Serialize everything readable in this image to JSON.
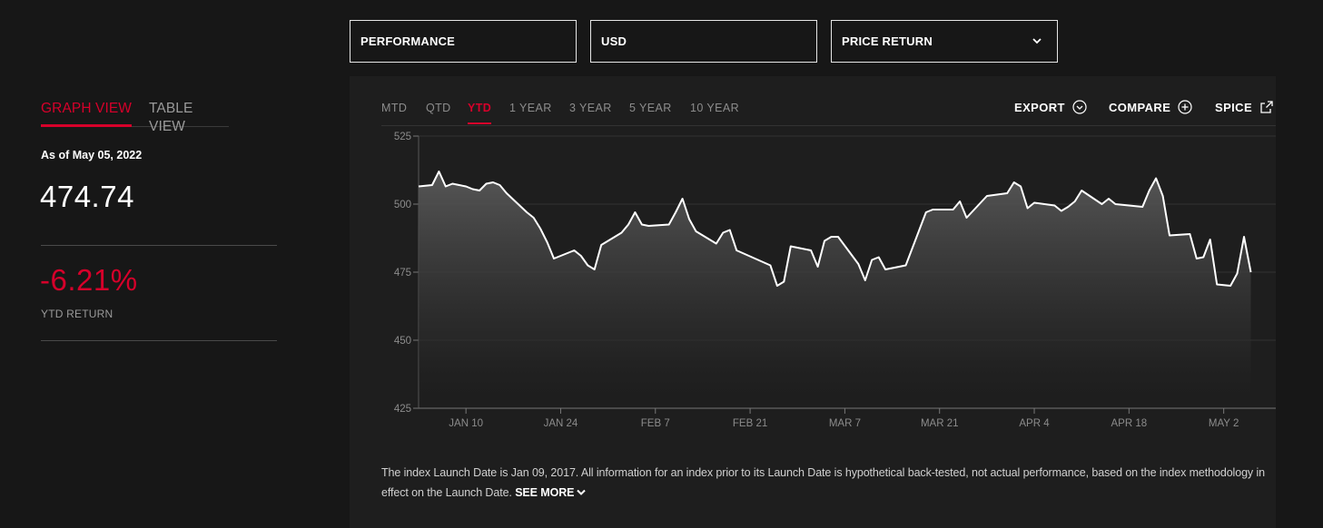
{
  "dropdowns": [
    {
      "value": "PERFORMANCE"
    },
    {
      "value": "USD"
    },
    {
      "value": "PRICE RETURN",
      "has_chevron": true
    }
  ],
  "view_tabs": {
    "graph": "GRAPH VIEW",
    "table": "TABLE VIEW",
    "active": "graph"
  },
  "summary": {
    "as_of": "As of May 05, 2022",
    "value": "474.74",
    "return_value": "-6.21%",
    "return_label": "YTD RETURN"
  },
  "periods": [
    "MTD",
    "QTD",
    "YTD",
    "1 YEAR",
    "3 YEAR",
    "5 YEAR",
    "10 YEAR"
  ],
  "active_period": "YTD",
  "actions": {
    "export": "EXPORT",
    "compare": "COMPARE",
    "spice": "SPICE"
  },
  "colors": {
    "accent": "#d6002a",
    "background": "#171717",
    "panel": "#1e1e1e"
  },
  "icons": {
    "export": "chevron-circle-icon",
    "compare": "plus-circle-icon",
    "spice": "external-link-icon",
    "dropdown": "chevron-down-icon",
    "see_more": "chevron-down-icon"
  },
  "chart_data": {
    "type": "area",
    "ylim": [
      425,
      525
    ],
    "yticks": [
      425,
      450,
      475,
      500,
      525
    ],
    "xlim": [
      "2022-01-03",
      "2022-05-05"
    ],
    "xticks": [
      {
        "date": "2022-01-10",
        "label": "JAN 10"
      },
      {
        "date": "2022-01-24",
        "label": "JAN 24"
      },
      {
        "date": "2022-02-07",
        "label": "FEB 7"
      },
      {
        "date": "2022-02-21",
        "label": "FEB 21"
      },
      {
        "date": "2022-03-07",
        "label": "MAR 7"
      },
      {
        "date": "2022-03-21",
        "label": "MAR 21"
      },
      {
        "date": "2022-04-04",
        "label": "APR 4"
      },
      {
        "date": "2022-04-18",
        "label": "APR 18"
      },
      {
        "date": "2022-05-02",
        "label": "MAY 2"
      }
    ],
    "series": [
      {
        "points": [
          [
            "2022-01-03",
            506.5
          ],
          [
            "2022-01-05",
            507
          ],
          [
            "2022-01-06",
            512
          ],
          [
            "2022-01-07",
            506.5
          ],
          [
            "2022-01-08",
            507.5
          ],
          [
            "2022-01-09",
            507
          ],
          [
            "2022-01-10",
            506.5
          ],
          [
            "2022-01-11",
            505.5
          ],
          [
            "2022-01-12",
            505
          ],
          [
            "2022-01-13",
            507.5
          ],
          [
            "2022-01-14",
            508
          ],
          [
            "2022-01-15",
            507
          ],
          [
            "2022-01-16",
            504
          ],
          [
            "2022-01-19",
            497
          ],
          [
            "2022-01-20",
            495
          ],
          [
            "2022-01-21",
            491
          ],
          [
            "2022-01-22",
            486
          ],
          [
            "2022-01-23",
            480
          ],
          [
            "2022-01-26",
            483
          ],
          [
            "2022-01-27",
            481
          ],
          [
            "2022-01-28",
            477.5
          ],
          [
            "2022-01-29",
            476
          ],
          [
            "2022-01-30",
            485
          ],
          [
            "2022-02-01",
            488
          ],
          [
            "2022-02-02",
            489.5
          ],
          [
            "2022-02-03",
            492.5
          ],
          [
            "2022-02-04",
            497
          ],
          [
            "2022-02-05",
            492.5
          ],
          [
            "2022-02-06",
            492
          ],
          [
            "2022-02-09",
            492.5
          ],
          [
            "2022-02-10",
            497
          ],
          [
            "2022-02-11",
            502
          ],
          [
            "2022-02-12",
            494.5
          ],
          [
            "2022-02-13",
            490
          ],
          [
            "2022-02-16",
            485.5
          ],
          [
            "2022-02-17",
            489.5
          ],
          [
            "2022-02-18",
            490.5
          ],
          [
            "2022-02-19",
            483
          ],
          [
            "2022-02-24",
            477.5
          ],
          [
            "2022-02-25",
            470
          ],
          [
            "2022-02-26",
            471.5
          ],
          [
            "2022-02-27",
            484.5
          ],
          [
            "2022-03-02",
            483
          ],
          [
            "2022-03-03",
            477
          ],
          [
            "2022-03-04",
            486.5
          ],
          [
            "2022-03-05",
            488
          ],
          [
            "2022-03-06",
            488
          ],
          [
            "2022-03-09",
            478
          ],
          [
            "2022-03-10",
            472
          ],
          [
            "2022-03-11",
            479.5
          ],
          [
            "2022-03-12",
            480.5
          ],
          [
            "2022-03-13",
            476
          ],
          [
            "2022-03-16",
            477.5
          ],
          [
            "2022-03-19",
            497
          ],
          [
            "2022-03-20",
            498
          ],
          [
            "2022-03-23",
            498
          ],
          [
            "2022-03-24",
            501
          ],
          [
            "2022-03-25",
            495
          ],
          [
            "2022-03-28",
            503
          ],
          [
            "2022-03-31",
            504
          ],
          [
            "2022-04-01",
            508
          ],
          [
            "2022-04-02",
            506.5
          ],
          [
            "2022-04-03",
            498.5
          ],
          [
            "2022-04-04",
            500.5
          ],
          [
            "2022-04-07",
            499.5
          ],
          [
            "2022-04-08",
            497.5
          ],
          [
            "2022-04-09",
            499
          ],
          [
            "2022-04-10",
            501
          ],
          [
            "2022-04-11",
            505
          ],
          [
            "2022-04-14",
            500
          ],
          [
            "2022-04-15",
            502
          ],
          [
            "2022-04-16",
            500
          ],
          [
            "2022-04-20",
            499
          ],
          [
            "2022-04-21",
            505
          ],
          [
            "2022-04-22",
            509.5
          ],
          [
            "2022-04-23",
            503
          ],
          [
            "2022-04-24",
            488.5
          ],
          [
            "2022-04-27",
            489
          ],
          [
            "2022-04-28",
            480
          ],
          [
            "2022-04-29",
            480.5
          ],
          [
            "2022-04-30",
            487
          ],
          [
            "2022-05-01",
            470.5
          ],
          [
            "2022-05-03",
            470
          ],
          [
            "2022-05-04",
            474.5
          ],
          [
            "2022-05-05",
            488
          ],
          [
            "2022-05-06",
            475
          ]
        ]
      }
    ]
  },
  "disclaimer": {
    "text": "The index Launch Date is Jan 09, 2017. All information for an index prior to its Launch Date is hypothetical back-tested, not actual performance, based on the index methodology in effect on the Launch Date.",
    "see_more": "SEE MORE"
  }
}
